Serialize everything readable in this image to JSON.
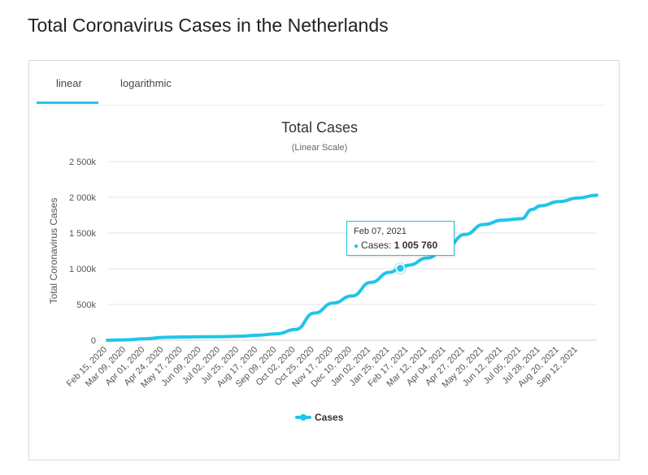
{
  "page": {
    "title": "Total Coronavirus Cases in the Netherlands"
  },
  "tabs": [
    {
      "label": "linear",
      "active": true
    },
    {
      "label": "logarithmic",
      "active": false
    }
  ],
  "tooltip": {
    "date": "Feb 07, 2021",
    "series": "Cases:",
    "value": "1 005 760"
  },
  "colors": {
    "accent": "#20c5e8",
    "line": "#20c5e8"
  },
  "chart_data": {
    "type": "line",
    "title": "Total Cases",
    "subtitle": "(Linear Scale)",
    "xlabel": "",
    "ylabel": "Total Coronavirus Cases",
    "ylim": [
      0,
      2500000
    ],
    "yticks": [
      0,
      500000,
      1000000,
      1500000,
      2000000,
      2500000
    ],
    "ytick_labels": [
      "0",
      "500k",
      "1 000k",
      "1 500k",
      "2 000k",
      "2 500k"
    ],
    "grid": true,
    "legend": "bottom-center",
    "x_start": "Feb 15, 2020",
    "x_end": "Oct 05, 2021",
    "categories": [
      "Feb 15, 2020",
      "Mar 09, 2020",
      "Apr 01, 2020",
      "Apr 24, 2020",
      "May 17, 2020",
      "Jun 09, 2020",
      "Jul 02, 2020",
      "Jul 25, 2020",
      "Aug 17, 2020",
      "Sep 09, 2020",
      "Oct 02, 2020",
      "Oct 25, 2020",
      "Nov 17, 2020",
      "Dec 10, 2020",
      "Jan 02, 2021",
      "Jan 25, 2021",
      "Feb 17, 2021",
      "Mar 12, 2021",
      "Apr 04, 2021",
      "Apr 27, 2021",
      "May 20, 2021",
      "Jun 12, 2021",
      "Jul 05, 2021",
      "Jul 28, 2021",
      "Aug 20, 2021",
      "Sep 12, 2021"
    ],
    "series": [
      {
        "name": "Cases",
        "x": [
          "Feb 15, 2020",
          "Mar 09, 2020",
          "Apr 01, 2020",
          "Apr 24, 2020",
          "May 17, 2020",
          "Jun 09, 2020",
          "Jul 02, 2020",
          "Jul 25, 2020",
          "Aug 17, 2020",
          "Sep 09, 2020",
          "Oct 02, 2020",
          "Oct 25, 2020",
          "Nov 17, 2020",
          "Dec 10, 2020",
          "Jan 02, 2021",
          "Jan 25, 2021",
          "Feb 07, 2021",
          "Feb 17, 2021",
          "Mar 12, 2021",
          "Apr 04, 2021",
          "Apr 27, 2021",
          "May 20, 2021",
          "Jun 12, 2021",
          "Jul 05, 2021",
          "Jul 18, 2021",
          "Jul 28, 2021",
          "Aug 20, 2021",
          "Sep 12, 2021",
          "Oct 05, 2021"
        ],
        "values": [
          0,
          5000,
          20000,
          40000,
          45000,
          48000,
          50000,
          55000,
          70000,
          90000,
          150000,
          380000,
          520000,
          620000,
          810000,
          950000,
          1005760,
          1050000,
          1150000,
          1300000,
          1480000,
          1620000,
          1680000,
          1700000,
          1830000,
          1880000,
          1940000,
          1990000,
          2030000
        ]
      }
    ],
    "highlight": {
      "x": "Feb 07, 2021",
      "y": 1005760
    }
  }
}
